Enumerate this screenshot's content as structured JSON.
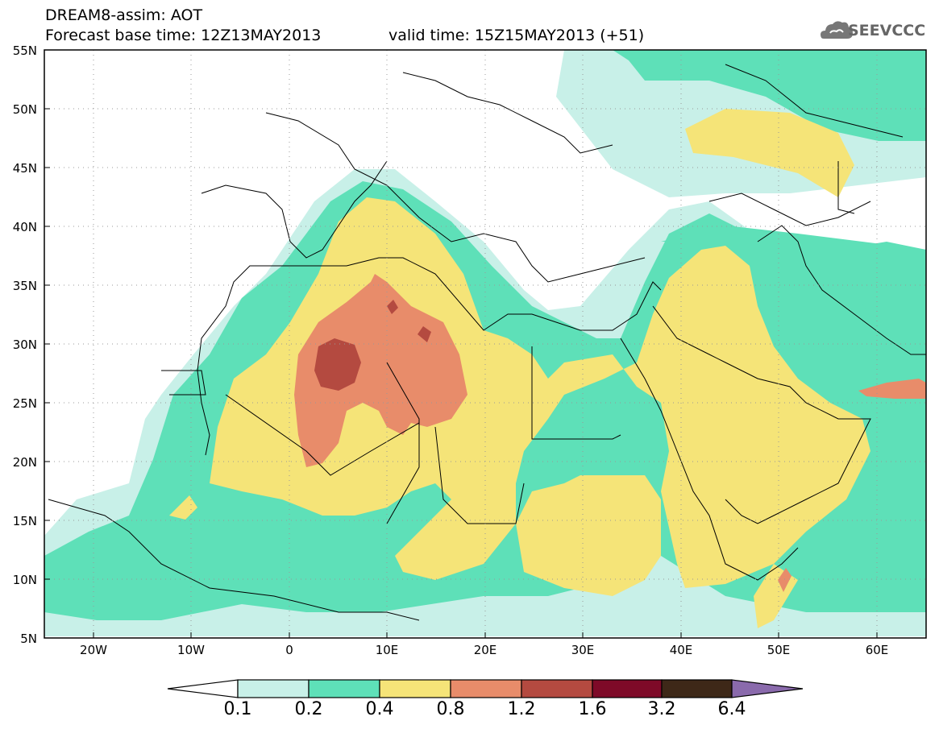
{
  "header": {
    "title": "DREAM8-assim: AOT",
    "base_time": "Forecast base time: 12Z13MAY2013",
    "valid_time": "valid time: 15Z15MAY2013 (+51)"
  },
  "logo": {
    "text": "SEEVCCC",
    "icon": "cloud-icon"
  },
  "map": {
    "projection": "lat-lon",
    "lon_range": [
      -25,
      65
    ],
    "lat_range": [
      5,
      55
    ],
    "lat_labels": [
      "55N",
      "50N",
      "45N",
      "40N",
      "35N",
      "30N",
      "25N",
      "20N",
      "15N",
      "10N",
      "5N"
    ],
    "lon_labels": [
      "20W",
      "10W",
      "0",
      "10E",
      "20E",
      "30E",
      "40E",
      "50E",
      "60E"
    ],
    "grid": "dotted"
  },
  "colorbar": {
    "labels": [
      "0.1",
      "0.2",
      "0.4",
      "0.8",
      "1.2",
      "1.6",
      "3.2",
      "6.4"
    ],
    "colors": [
      "#ffffff",
      "#c8f0e8",
      "#5ee0b8",
      "#f5e478",
      "#e88c6a",
      "#b44a40",
      "#7e0a28",
      "#3e2818",
      "#8a6aac"
    ]
  }
}
